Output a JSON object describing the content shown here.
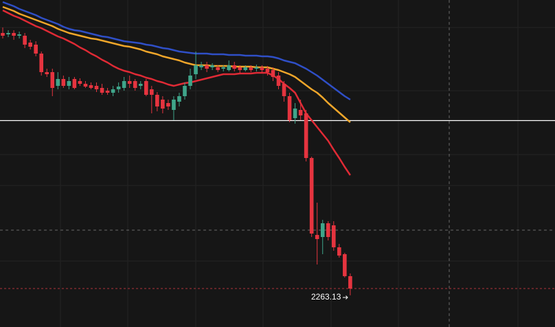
{
  "chart_data": {
    "type": "candlestick",
    "up_color": "#3fa58a",
    "down_color": "#e5343f",
    "ylim": [
      2217,
      2693
    ],
    "open": [
      2645,
      2643,
      2645,
      2641,
      2641,
      2631,
      2628,
      2615,
      2588,
      2588,
      2568,
      2578,
      2568,
      2578,
      2575,
      2571,
      2569,
      2568,
      2565,
      2561,
      2558,
      2563,
      2565,
      2575,
      2575,
      2568,
      2575,
      2563,
      2555,
      2548,
      2543,
      2533,
      2545,
      2553,
      2568,
      2585,
      2595,
      2598,
      2595,
      2595,
      2593,
      2591,
      2598,
      2595,
      2591,
      2595,
      2593,
      2595,
      2593,
      2591,
      2583,
      2571,
      2553,
      2521,
      2533,
      2528,
      2463,
      2351,
      2348,
      2368,
      2365,
      2333,
      2323,
      2291
    ],
    "high": [
      2653,
      2649,
      2649,
      2647,
      2645,
      2635,
      2633,
      2618,
      2593,
      2593,
      2588,
      2583,
      2581,
      2581,
      2579,
      2575,
      2573,
      2573,
      2571,
      2565,
      2568,
      2573,
      2581,
      2583,
      2578,
      2575,
      2578,
      2568,
      2559,
      2553,
      2548,
      2553,
      2558,
      2573,
      2593,
      2618,
      2603,
      2603,
      2601,
      2598,
      2598,
      2605,
      2603,
      2598,
      2598,
      2598,
      2599,
      2598,
      2597,
      2595,
      2588,
      2575,
      2558,
      2543,
      2548,
      2533,
      2465,
      2398,
      2373,
      2371,
      2371,
      2338,
      2325,
      2295
    ],
    "low": [
      2637,
      2639,
      2635,
      2637,
      2623,
      2621,
      2611,
      2583,
      2581,
      2553,
      2563,
      2565,
      2563,
      2563,
      2568,
      2565,
      2563,
      2559,
      2555,
      2555,
      2553,
      2558,
      2561,
      2565,
      2561,
      2563,
      2553,
      2528,
      2531,
      2528,
      2533,
      2518,
      2538,
      2548,
      2563,
      2578,
      2591,
      2588,
      2591,
      2588,
      2589,
      2589,
      2589,
      2587,
      2589,
      2588,
      2589,
      2587,
      2583,
      2575,
      2563,
      2545,
      2515,
      2513,
      2518,
      2458,
      2348,
      2308,
      2323,
      2343,
      2328,
      2318,
      2289,
      2263.13
    ],
    "close": [
      2641,
      2645,
      2641,
      2643,
      2628,
      2625,
      2615,
      2588,
      2585,
      2565,
      2578,
      2568,
      2575,
      2565,
      2571,
      2567,
      2565,
      2563,
      2558,
      2558,
      2563,
      2567,
      2575,
      2571,
      2565,
      2571,
      2555,
      2555,
      2538,
      2535,
      2538,
      2548,
      2553,
      2568,
      2583,
      2598,
      2598,
      2593,
      2598,
      2591,
      2595,
      2598,
      2593,
      2591,
      2595,
      2591,
      2595,
      2591,
      2588,
      2581,
      2568,
      2553,
      2518,
      2535,
      2525,
      2463,
      2353,
      2345,
      2368,
      2348,
      2333,
      2321,
      2291,
      2273
    ],
    "lines": [
      {
        "color": "#2f4fc7",
        "values": [
          2690,
          2687,
          2684,
          2680,
          2677,
          2674,
          2671,
          2667,
          2664,
          2661,
          2658,
          2654,
          2651,
          2649,
          2648,
          2646,
          2644,
          2642,
          2640,
          2639,
          2637,
          2635,
          2633,
          2632,
          2631,
          2630,
          2628,
          2627,
          2625,
          2623,
          2622,
          2620,
          2618,
          2617,
          2616,
          2615,
          2615,
          2615,
          2614,
          2614,
          2614,
          2613,
          2613,
          2613,
          2612,
          2612,
          2612,
          2611,
          2611,
          2610,
          2608,
          2605,
          2603,
          2601,
          2597,
          2593,
          2588,
          2583,
          2577,
          2571,
          2565,
          2559,
          2553,
          2548
        ]
      },
      {
        "color": "#f0a62a",
        "values": [
          2683,
          2680,
          2677,
          2673,
          2670,
          2667,
          2664,
          2661,
          2658,
          2655,
          2651,
          2648,
          2645,
          2643,
          2641,
          2639,
          2637,
          2636,
          2634,
          2632,
          2630,
          2628,
          2626,
          2625,
          2623,
          2621,
          2618,
          2616,
          2614,
          2611,
          2609,
          2607,
          2605,
          2602,
          2600,
          2598,
          2598,
          2598,
          2597,
          2597,
          2597,
          2597,
          2596,
          2596,
          2596,
          2596,
          2595,
          2595,
          2595,
          2593,
          2591,
          2588,
          2585,
          2581,
          2575,
          2569,
          2563,
          2558,
          2551,
          2543,
          2536,
          2529,
          2522,
          2515
        ]
      },
      {
        "color": "#e02a35",
        "values": [
          2678,
          2674,
          2670,
          2667,
          2663,
          2659,
          2655,
          2652,
          2648,
          2644,
          2640,
          2637,
          2633,
          2629,
          2624,
          2620,
          2615,
          2611,
          2606,
          2602,
          2597,
          2593,
          2590,
          2588,
          2585,
          2583,
          2580,
          2578,
          2575,
          2573,
          2570,
          2568,
          2570,
          2572,
          2573,
          2575,
          2577,
          2579,
          2581,
          2583,
          2585,
          2585,
          2585,
          2586,
          2586,
          2586,
          2587,
          2587,
          2587,
          2583,
          2578,
          2571,
          2565,
          2558,
          2543,
          2528,
          2518,
          2508,
          2498,
          2488,
          2475,
          2463,
          2450,
          2438
        ]
      }
    ]
  }
}
